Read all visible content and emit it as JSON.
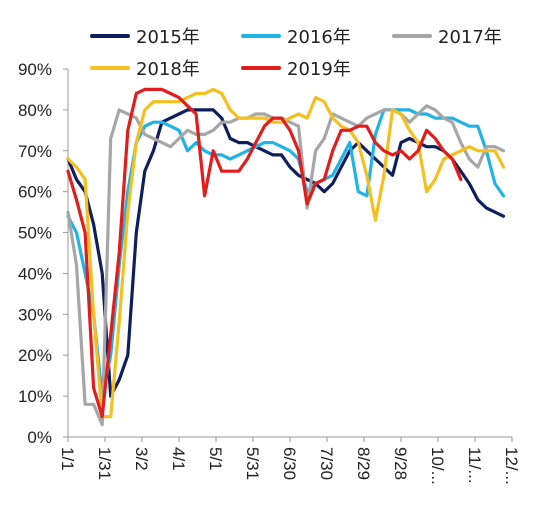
{
  "chart_data": {
    "type": "line",
    "title": "",
    "xlabel": "",
    "ylabel": "",
    "ylim": [
      0,
      0.9
    ],
    "yticks": [
      "0%",
      "10%",
      "20%",
      "30%",
      "40%",
      "50%",
      "60%",
      "70%",
      "80%",
      "90%"
    ],
    "xtick_labels": [
      "1/1",
      "1/31",
      "3/2",
      "4/1",
      "5/1",
      "5/31",
      "6/30",
      "7/30",
      "8/29",
      "9/28",
      "10/...",
      "11/...",
      "12/..."
    ],
    "grid": false,
    "legend_position": "top",
    "x_week_index_max": 52,
    "series": [
      {
        "name": "2015年",
        "color": "#0f1f5c",
        "x": [
          0,
          1,
          2,
          3,
          4,
          5,
          6,
          7,
          8,
          9,
          10,
          11,
          12,
          13,
          14,
          15,
          16,
          17,
          18,
          19,
          20,
          21,
          22,
          23,
          24,
          25,
          26,
          27,
          28,
          29,
          30,
          31,
          32,
          33,
          34,
          35,
          36,
          37,
          38,
          39,
          40,
          41,
          42,
          43,
          44,
          45,
          46,
          47,
          48,
          49,
          50,
          51
        ],
        "values": [
          0.68,
          0.63,
          0.6,
          0.52,
          0.4,
          0.1,
          0.14,
          0.2,
          0.5,
          0.65,
          0.7,
          0.77,
          0.78,
          0.79,
          0.8,
          0.8,
          0.8,
          0.8,
          0.78,
          0.73,
          0.72,
          0.72,
          0.71,
          0.7,
          0.69,
          0.69,
          0.66,
          0.64,
          0.63,
          0.62,
          0.6,
          0.62,
          0.66,
          0.7,
          0.72,
          0.7,
          0.68,
          0.66,
          0.64,
          0.72,
          0.73,
          0.72,
          0.71,
          0.71,
          0.7,
          0.68,
          0.65,
          0.62,
          0.58,
          0.56,
          0.55,
          0.54
        ]
      },
      {
        "name": "2016年",
        "color": "#1fb3e6",
        "x": [
          0,
          1,
          2,
          3,
          4,
          5,
          6,
          7,
          8,
          9,
          10,
          11,
          12,
          13,
          14,
          15,
          16,
          17,
          18,
          19,
          20,
          21,
          22,
          23,
          24,
          25,
          26,
          27,
          28,
          29,
          30,
          31,
          32,
          33,
          34,
          35,
          36,
          37,
          38,
          39,
          40,
          41,
          42,
          43,
          44,
          45,
          46,
          47,
          48,
          49,
          50,
          51
        ],
        "values": [
          0.54,
          0.5,
          0.4,
          0.3,
          0.1,
          0.2,
          0.42,
          0.6,
          0.72,
          0.76,
          0.77,
          0.77,
          0.76,
          0.75,
          0.7,
          0.72,
          0.7,
          0.69,
          0.69,
          0.68,
          0.69,
          0.7,
          0.71,
          0.72,
          0.72,
          0.71,
          0.7,
          0.68,
          0.6,
          0.62,
          0.63,
          0.64,
          0.68,
          0.72,
          0.6,
          0.59,
          0.74,
          0.8,
          0.8,
          0.8,
          0.8,
          0.79,
          0.79,
          0.78,
          0.78,
          0.78,
          0.77,
          0.76,
          0.76,
          0.7,
          0.62,
          0.59
        ]
      },
      {
        "name": "2017年",
        "color": "#a6a6a6",
        "x": [
          0,
          1,
          2,
          3,
          4,
          5,
          6,
          7,
          8,
          9,
          10,
          11,
          12,
          13,
          14,
          15,
          16,
          17,
          18,
          19,
          20,
          21,
          22,
          23,
          24,
          25,
          26,
          27,
          28,
          29,
          30,
          31,
          32,
          33,
          34,
          35,
          36,
          37,
          38,
          39,
          40,
          41,
          42,
          43,
          44,
          45,
          46,
          47,
          48,
          49,
          50,
          51
        ],
        "values": [
          0.55,
          0.42,
          0.08,
          0.08,
          0.03,
          0.73,
          0.8,
          0.79,
          0.78,
          0.74,
          0.73,
          0.72,
          0.71,
          0.73,
          0.75,
          0.74,
          0.74,
          0.75,
          0.77,
          0.77,
          0.78,
          0.78,
          0.79,
          0.79,
          0.78,
          0.78,
          0.77,
          0.76,
          0.56,
          0.7,
          0.73,
          0.79,
          0.78,
          0.77,
          0.76,
          0.78,
          0.79,
          0.8,
          0.8,
          0.79,
          0.77,
          0.79,
          0.81,
          0.8,
          0.78,
          0.77,
          0.72,
          0.68,
          0.66,
          0.71,
          0.71,
          0.7
        ]
      },
      {
        "name": "2018年",
        "color": "#f5c01f",
        "x": [
          0,
          1,
          2,
          3,
          4,
          5,
          6,
          7,
          8,
          9,
          10,
          11,
          12,
          13,
          14,
          15,
          16,
          17,
          18,
          19,
          20,
          21,
          22,
          23,
          24,
          25,
          26,
          27,
          28,
          29,
          30,
          31,
          32,
          33,
          34,
          35,
          36,
          37,
          38,
          39,
          40,
          41,
          42,
          43,
          44,
          45,
          46,
          47,
          48,
          49,
          50,
          51
        ],
        "values": [
          0.68,
          0.66,
          0.63,
          0.3,
          0.05,
          0.05,
          0.28,
          0.55,
          0.72,
          0.8,
          0.82,
          0.82,
          0.82,
          0.82,
          0.83,
          0.84,
          0.84,
          0.85,
          0.84,
          0.8,
          0.78,
          0.78,
          0.78,
          0.78,
          0.77,
          0.77,
          0.78,
          0.79,
          0.78,
          0.83,
          0.82,
          0.78,
          0.76,
          0.75,
          0.72,
          0.64,
          0.53,
          0.64,
          0.8,
          0.79,
          0.75,
          0.72,
          0.6,
          0.63,
          0.68,
          0.69,
          0.7,
          0.71,
          0.7,
          0.7,
          0.7,
          0.66
        ]
      },
      {
        "name": "2019年",
        "color": "#e31c1c",
        "x": [
          0,
          1,
          2,
          3,
          4,
          5,
          6,
          7,
          8,
          9,
          10,
          11,
          12,
          13,
          14,
          15,
          16,
          17,
          18,
          19,
          20,
          21,
          22,
          23,
          24,
          25,
          26,
          27,
          28,
          29,
          30,
          31,
          32,
          33,
          34,
          35,
          36,
          37,
          38,
          39,
          40,
          41,
          42,
          43,
          44,
          45,
          46
        ],
        "values": [
          0.65,
          0.58,
          0.5,
          0.12,
          0.05,
          0.25,
          0.45,
          0.75,
          0.84,
          0.85,
          0.85,
          0.85,
          0.84,
          0.83,
          0.81,
          0.79,
          0.59,
          0.7,
          0.65,
          0.65,
          0.65,
          0.68,
          0.72,
          0.76,
          0.78,
          0.78,
          0.75,
          0.7,
          0.57,
          0.62,
          0.63,
          0.7,
          0.75,
          0.75,
          0.76,
          0.76,
          0.72,
          0.7,
          0.69,
          0.7,
          0.68,
          0.7,
          0.75,
          0.73,
          0.7,
          0.68,
          0.63
        ]
      }
    ]
  }
}
